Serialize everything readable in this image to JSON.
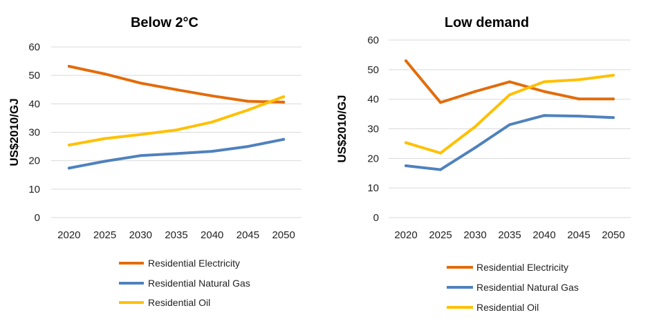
{
  "chart_data": [
    {
      "type": "line",
      "title": "Below 2°C",
      "xlabel": "",
      "ylabel": "US$2010/GJ",
      "ylim": [
        0,
        60
      ],
      "yticks": [
        "0",
        "10",
        "20",
        "30",
        "40",
        "50",
        "60"
      ],
      "categories": [
        "2020",
        "2025",
        "2030",
        "2035",
        "2040",
        "2045",
        "2050"
      ],
      "grid": true,
      "legend": "bottom",
      "series": [
        {
          "name": "Residential Electricity",
          "color": "#E36C0A",
          "values": [
            53.2,
            50.5,
            47.3,
            45.0,
            42.8,
            40.9,
            40.6
          ]
        },
        {
          "name": "Residential Natural Gas",
          "color": "#4F81BD",
          "values": [
            17.4,
            19.8,
            21.8,
            22.5,
            23.3,
            25.0,
            27.5
          ]
        },
        {
          "name": "Residential Oil",
          "color": "#FFC000",
          "values": [
            25.5,
            27.8,
            29.2,
            30.8,
            33.6,
            37.8,
            42.5
          ]
        }
      ]
    },
    {
      "type": "line",
      "title": "Low demand",
      "xlabel": "",
      "ylabel": "US$2010/GJ",
      "ylim": [
        0,
        60
      ],
      "yticks": [
        "0",
        "10",
        "20",
        "30",
        "40",
        "50",
        "60"
      ],
      "categories": [
        "2020",
        "2025",
        "2030",
        "2035",
        "2040",
        "2045",
        "2050"
      ],
      "grid": true,
      "legend": "bottom",
      "series": [
        {
          "name": "Residential Electricity",
          "color": "#E36C0A",
          "values": [
            53.0,
            38.9,
            42.6,
            45.9,
            42.6,
            40.1,
            40.1
          ]
        },
        {
          "name": "Residential Natural Gas",
          "color": "#4F81BD",
          "values": [
            17.5,
            16.2,
            23.6,
            31.4,
            34.5,
            34.3,
            33.8
          ]
        },
        {
          "name": "Residential Oil",
          "color": "#FFC000",
          "values": [
            25.3,
            21.8,
            30.7,
            41.5,
            45.9,
            46.6,
            48.1
          ]
        }
      ]
    }
  ]
}
